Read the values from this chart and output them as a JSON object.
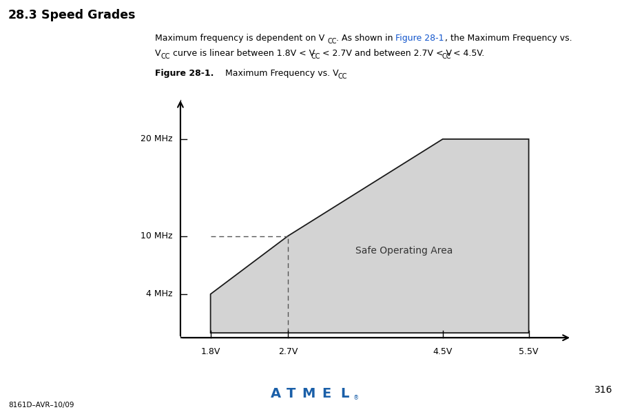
{
  "title_section": "28.3   Speed Grades",
  "x_ticks": [
    1.8,
    2.7,
    4.5,
    5.5
  ],
  "x_tick_labels": [
    "1.8V",
    "2.7V",
    "4.5V",
    "5.5V"
  ],
  "y_ticks": [
    4,
    10,
    20
  ],
  "y_tick_labels": [
    "4 MHz",
    "10 MHz",
    "20 MHz"
  ],
  "polygon_x": [
    1.8,
    1.8,
    2.7,
    4.5,
    5.5,
    5.5
  ],
  "polygon_y": [
    0,
    4,
    10,
    20,
    20,
    0
  ],
  "fill_color": "#d3d3d3",
  "line_color": "#1a1a1a",
  "dashed_line_color": "#555555",
  "safe_area_label": "Safe Operating Area",
  "safe_area_x": 4.05,
  "safe_area_y": 8.5,
  "page_number": "316",
  "footer_left": "8161D–AVR–10/09",
  "link_color": "#1155cc",
  "background_color": "#ffffff",
  "xlim": [
    1.45,
    6.05
  ],
  "ylim": [
    -2.0,
    25
  ]
}
